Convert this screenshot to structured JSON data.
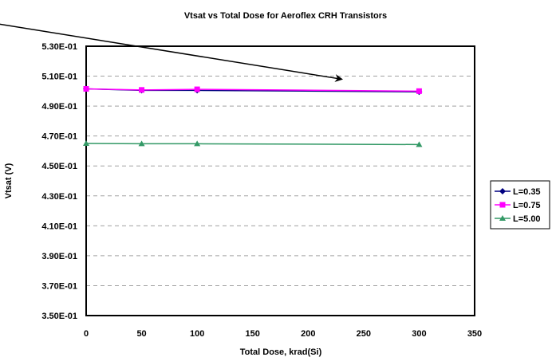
{
  "chart_data": {
    "type": "line",
    "title": "Vtsat vs Total Dose for Aeroflex CRH Transistors",
    "xlabel": "Total Dose, krad(Si)",
    "ylabel": "Vtsat (V)",
    "xlim": [
      0,
      350
    ],
    "ylim": [
      0.35,
      0.53
    ],
    "xticks": [
      0,
      50,
      100,
      150,
      200,
      250,
      300,
      350
    ],
    "xtick_labels": [
      "0",
      "50",
      "100",
      "150",
      "200",
      "250",
      "300",
      "350"
    ],
    "yticks": [
      0.35,
      0.37,
      0.39,
      0.41,
      0.43,
      0.45,
      0.47,
      0.49,
      0.51,
      0.53
    ],
    "ytick_labels": [
      "3.50E-01",
      "3.70E-01",
      "3.90E-01",
      "4.10E-01",
      "4.30E-01",
      "4.50E-01",
      "4.70E-01",
      "4.90E-01",
      "5.10E-01",
      "5.30E-01"
    ],
    "grid": "horizontal dashed",
    "legend_position": "right",
    "x": [
      0,
      50,
      100,
      300
    ],
    "series": [
      {
        "name": "L=0.35",
        "values": [
          0.5015,
          0.5005,
          0.5005,
          0.4995
        ],
        "color": "#000080",
        "marker": "diamond"
      },
      {
        "name": "L=0.75",
        "values": [
          0.5015,
          0.5008,
          0.5012,
          0.5
        ],
        "color": "#ff00ff",
        "marker": "square"
      },
      {
        "name": "L=5.00",
        "values": [
          0.465,
          0.4648,
          0.4648,
          0.4643
        ],
        "color": "#339966",
        "marker": "triangle"
      }
    ],
    "annotations": [
      {
        "type": "arrow",
        "from": [
          -80,
          0.545
        ],
        "to": [
          230,
          0.508
        ]
      }
    ]
  }
}
